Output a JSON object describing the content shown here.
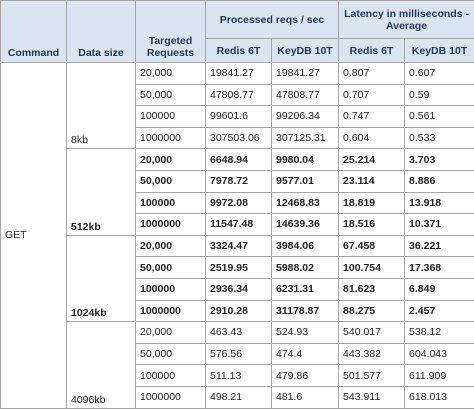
{
  "table": {
    "header": {
      "command": "Command",
      "data_size": "Data size",
      "targeted_requests": "Targeted Requests",
      "processed": "Processed reqs / sec",
      "latency": "Latency in milliseconds - Average",
      "sub": [
        "Redis 6T",
        "KeyDB 10T",
        "Redis 6T",
        "KeyDB 10T"
      ]
    },
    "command": "GET",
    "groups": [
      {
        "size": "8kb",
        "bold": false,
        "rows": [
          [
            "20,000",
            "19841.27",
            "19841.27",
            "0.807",
            "0.607"
          ],
          [
            "50,000",
            "47808.77",
            "47808.77",
            "0.707",
            "0.59"
          ],
          [
            "100000",
            "99601.6",
            "99206.34",
            "0.747",
            "0.561"
          ],
          [
            "1000000",
            "307503.06",
            "307125.31",
            "0.604",
            "0.533"
          ]
        ]
      },
      {
        "size": "512kb",
        "bold": true,
        "rows": [
          [
            "20,000",
            "6648.94",
            "9980.04",
            "25.214",
            "3.703"
          ],
          [
            "50,000",
            "7978.72",
            "9577.01",
            "23.114",
            "8.886"
          ],
          [
            "100000",
            "9972.08",
            "12468.83",
            "18.819",
            "13.918"
          ],
          [
            "1000000",
            "11547.48",
            "14639.36",
            "18.516",
            "10.371"
          ]
        ]
      },
      {
        "size": "1024kb",
        "bold": true,
        "rows": [
          [
            "20,000",
            "3324.47",
            "3984.06",
            "67.458",
            "36.221"
          ],
          [
            "50,000",
            "2519.95",
            "5988.02",
            "100.754",
            "17.368"
          ],
          [
            "100000",
            "2936.34",
            "6231.31",
            "81.623",
            "6.849"
          ],
          [
            "1000000",
            "2910.28",
            "31178.87",
            "88.275",
            "2.457"
          ]
        ]
      },
      {
        "size": "4096kb",
        "bold": false,
        "rows": [
          [
            "20,000",
            "463.43",
            "524.93",
            "540.017",
            "538.12"
          ],
          [
            "50,000",
            "576.56",
            "474.4",
            "443.382",
            "604.043"
          ],
          [
            "100000",
            "511.13",
            "479.86",
            "501.577",
            "611.909"
          ],
          [
            "1000000",
            "498.21",
            "481.6",
            "543.911",
            "618.013"
          ]
        ]
      }
    ]
  }
}
